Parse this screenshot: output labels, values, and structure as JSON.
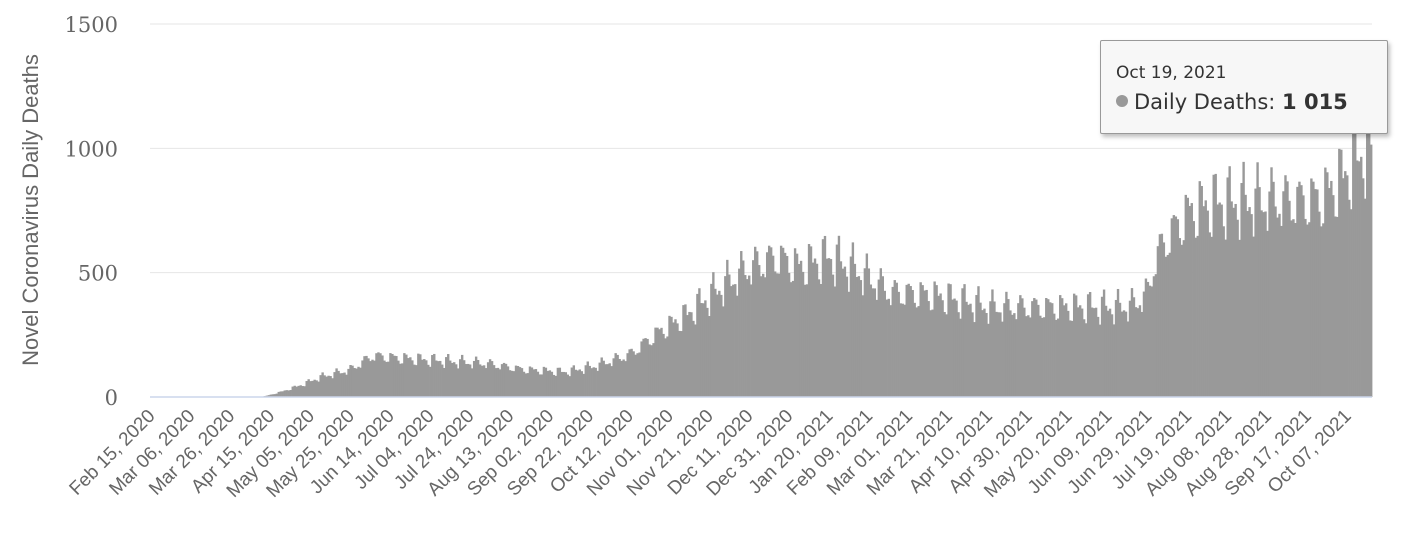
{
  "chart_data": {
    "type": "bar",
    "title": "",
    "ylabel": "Novel Coronavirus Daily Deaths",
    "xlabel": "",
    "ylim": [
      0,
      1500
    ],
    "y_ticks": [
      0,
      500,
      1000,
      1500
    ],
    "x_start": "2020-02-15",
    "x_end": "2021-10-19",
    "x_tick_labels": [
      "Feb 15, 2020",
      "Mar 06, 2020",
      "Mar 26, 2020",
      "Apr 15, 2020",
      "May 05, 2020",
      "May 25, 2020",
      "Jun 14, 2020",
      "Jul 04, 2020",
      "Jul 24, 2020",
      "Aug 13, 2020",
      "Sep 02, 2020",
      "Sep 22, 2020",
      "Oct 12, 2020",
      "Nov 01, 2020",
      "Nov 21, 2020",
      "Dec 11, 2020",
      "Dec 31, 2020",
      "Jan 20, 2021",
      "Feb 09, 2021",
      "Mar 01, 2021",
      "Mar 21, 2021",
      "Apr 10, 2021",
      "Apr 30, 2021",
      "May 20, 2021",
      "Jun 09, 2021",
      "Jun 29, 2021",
      "Jul 19, 2021",
      "Aug 08, 2021",
      "Aug 28, 2021",
      "Sep 17, 2021",
      "Oct 07, 2021"
    ],
    "series": [
      {
        "name": "Daily Deaths",
        "color": "#999999",
        "trend_points": [
          [
            "2020-02-15",
            0
          ],
          [
            "2020-04-10",
            0
          ],
          [
            "2020-04-13",
            5
          ],
          [
            "2020-04-20",
            20
          ],
          [
            "2020-05-01",
            50
          ],
          [
            "2020-05-10",
            80
          ],
          [
            "2020-05-25",
            110
          ],
          [
            "2020-06-05",
            165
          ],
          [
            "2020-06-20",
            155
          ],
          [
            "2020-07-10",
            145
          ],
          [
            "2020-08-01",
            135
          ],
          [
            "2020-08-20",
            110
          ],
          [
            "2020-09-10",
            100
          ],
          [
            "2020-09-25",
            125
          ],
          [
            "2020-10-12",
            170
          ],
          [
            "2020-10-25",
            250
          ],
          [
            "2020-11-10",
            330
          ],
          [
            "2020-11-25",
            430
          ],
          [
            "2020-12-11",
            520
          ],
          [
            "2020-12-25",
            560
          ],
          [
            "2021-01-05",
            520
          ],
          [
            "2021-01-20",
            560
          ],
          [
            "2021-02-05",
            500
          ],
          [
            "2021-02-20",
            420
          ],
          [
            "2021-03-10",
            410
          ],
          [
            "2021-03-25",
            390
          ],
          [
            "2021-04-10",
            360
          ],
          [
            "2021-05-01",
            360
          ],
          [
            "2021-05-25",
            360
          ],
          [
            "2021-06-15",
            360
          ],
          [
            "2021-06-22",
            370
          ],
          [
            "2021-06-29",
            420
          ],
          [
            "2021-07-03",
            560
          ],
          [
            "2021-07-10",
            650
          ],
          [
            "2021-07-20",
            740
          ],
          [
            "2021-08-01",
            775
          ],
          [
            "2021-08-28",
            790
          ],
          [
            "2021-09-15",
            785
          ],
          [
            "2021-09-25",
            800
          ],
          [
            "2021-10-05",
            880
          ],
          [
            "2021-10-12",
            950
          ],
          [
            "2021-10-19",
            1015
          ]
        ]
      }
    ],
    "tooltip": {
      "date": "Oct 19, 2021",
      "series_label": "Daily Deaths",
      "value": "1 015"
    },
    "grid": true,
    "legend": "none"
  }
}
